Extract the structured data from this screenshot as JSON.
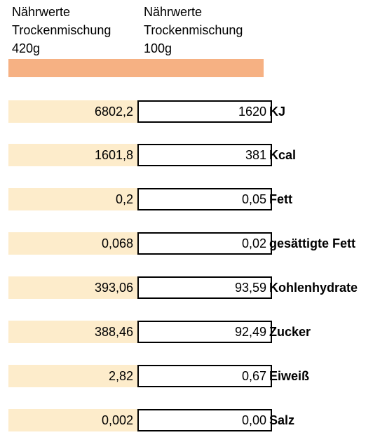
{
  "headers": {
    "left": {
      "line1": "Nährwerte",
      "line2": "Trockenmischung",
      "line3": "420g"
    },
    "right": {
      "line1": "Nährwerte",
      "line2": "Trockenmischung",
      "line3": "100g"
    }
  },
  "colors": {
    "accent_band": "#f6b183",
    "left_cell": "#fdeccb"
  },
  "rows": [
    {
      "total": "6802,2",
      "per100": "1620",
      "label": "KJ"
    },
    {
      "total": "1601,8",
      "per100": "381",
      "label": "Kcal"
    },
    {
      "total": "0,2",
      "per100": "0,05",
      "label": "Fett"
    },
    {
      "total": "0,068",
      "per100": "0,02",
      "label": "gesättigte Fett"
    },
    {
      "total": "393,06",
      "per100": "93,59",
      "label": "Kohlenhydrate"
    },
    {
      "total": "388,46",
      "per100": "92,49",
      "label": "Zucker"
    },
    {
      "total": "2,82",
      "per100": "0,67",
      "label": "Eiweiß"
    },
    {
      "total": "0,002",
      "per100": "0,00",
      "label": "Salz"
    }
  ]
}
